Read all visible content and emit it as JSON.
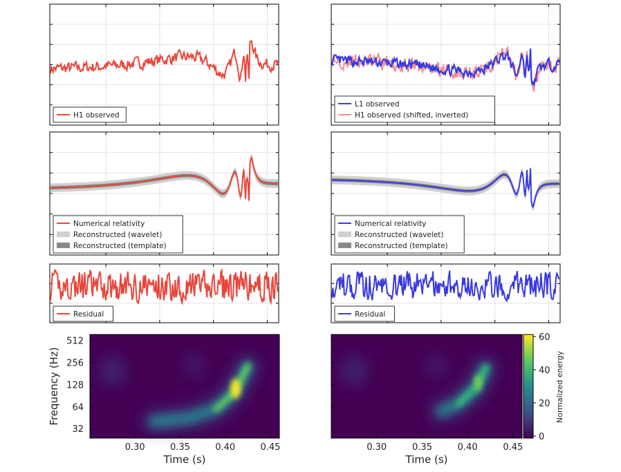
{
  "colors": {
    "h1": "#e8463b",
    "h1_light": "#f08f8f",
    "l1": "#3a3ae0",
    "recon_wavelet": "#cfcfcf",
    "recon_template": "#8a8a8a",
    "grid": "#e3e3e3"
  },
  "chart_data": [
    {
      "type": "line",
      "panel": "h1-observed",
      "legend": [
        "H1 observed"
      ]
    },
    {
      "type": "line",
      "panel": "l1-observed",
      "legend": [
        "L1 observed",
        "H1 observed (shifted, inverted)"
      ]
    },
    {
      "type": "line",
      "panel": "h1-reconstruction",
      "legend": [
        "Numerical relativity",
        "Reconstructed (wavelet)",
        "Reconstructed (template)"
      ]
    },
    {
      "type": "line",
      "panel": "l1-reconstruction",
      "legend": [
        "Numerical relativity",
        "Reconstructed (wavelet)",
        "Reconstructed (template)"
      ]
    },
    {
      "type": "line",
      "panel": "h1-residual",
      "legend": [
        "Residual"
      ]
    },
    {
      "type": "line",
      "panel": "l1-residual",
      "legend": [
        "Residual"
      ]
    },
    {
      "type": "heatmap",
      "panel": "h1-spectrogram",
      "xlabel": "Time (s)",
      "ylabel": "Frequency (Hz)",
      "xlim": [
        0.25,
        0.46
      ],
      "xticks": [
        "0.30",
        "0.35",
        "0.40",
        "0.45"
      ],
      "yticks": [
        "512",
        "256",
        "128",
        "64",
        "32"
      ],
      "ridge": {
        "t": [
          0.32,
          0.36,
          0.39,
          0.41,
          0.425
        ],
        "f": [
          40,
          45,
          60,
          100,
          230
        ]
      }
    },
    {
      "type": "heatmap",
      "panel": "l1-spectrogram",
      "xlabel": "Time (s)",
      "xlim": [
        0.25,
        0.46
      ],
      "xticks": [
        "0.30",
        "0.35",
        "0.40",
        "0.45"
      ],
      "colorbar": {
        "label": "Normalized energy",
        "ticks": [
          "60",
          "40",
          "20",
          "0"
        ],
        "range": [
          0,
          60
        ]
      },
      "ridge": {
        "t": [
          0.37,
          0.39,
          0.41,
          0.42
        ],
        "f": [
          55,
          70,
          120,
          220
        ]
      }
    }
  ]
}
